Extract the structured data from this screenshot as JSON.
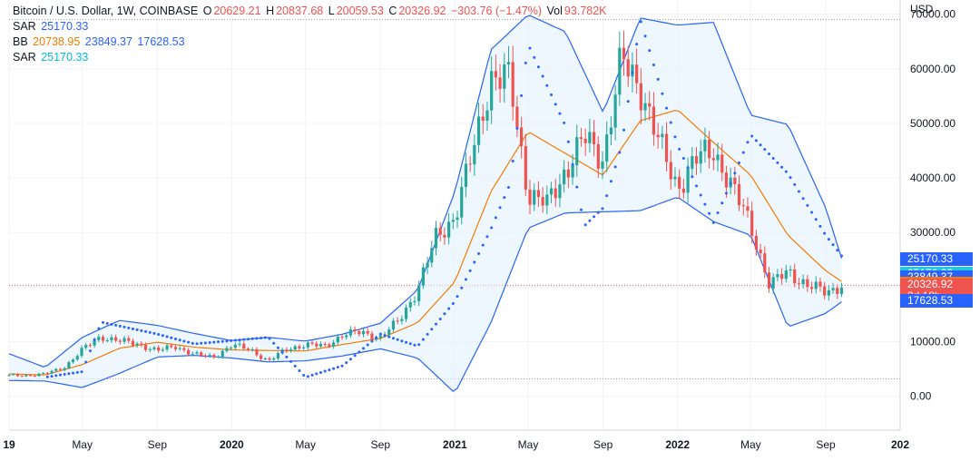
{
  "header": {
    "symbol": "Bitcoin / U.S. Dollar, 1W, COINBASE",
    "o_label": "O",
    "o_value": "20629.21",
    "h_label": "H",
    "h_value": "20837.68",
    "l_label": "L",
    "l_value": "20059.53",
    "c_label": "C",
    "c_value": "20326.92",
    "change": "−303.76 (−1.47%)",
    "vol_label": "Vol",
    "vol_value": "93.782K"
  },
  "indicators": [
    {
      "name": "SAR",
      "values": [
        "25170.33"
      ],
      "color": "#2962ff"
    },
    {
      "name": "BB",
      "values": [
        "20738.95",
        "23849.37",
        "17628.53"
      ],
      "color": "#2962ff"
    },
    {
      "name": "SAR",
      "values": [
        "25170.33"
      ],
      "color": "#00bcd4"
    }
  ],
  "price_axis": {
    "currency": "USD",
    "tags": [
      {
        "text": "25170.33",
        "color": "#2962ff"
      },
      {
        "text": "25170.33",
        "color": "#26c6da"
      },
      {
        "text": "23849.37",
        "color": "#2962ff"
      },
      {
        "text": "20738.95",
        "color": "#f57c00"
      },
      {
        "text": "20326.92",
        "sub": "3d 18h",
        "color": "#ef5350"
      },
      {
        "text": "17628.53",
        "color": "#2962ff"
      }
    ]
  },
  "colors": {
    "up": "#26a69a",
    "down": "#ef5350",
    "bb_band": "#2962ff",
    "bb_basis": "#f57c00",
    "bb_fill": "#e3f2fd"
  },
  "chart_data": {
    "type": "candlestick",
    "y_ticks": [
      70000,
      60000,
      50000,
      40000,
      30000,
      20000,
      10000,
      0
    ],
    "y_tick_labels": [
      "70000.00",
      "60000.00",
      "50000.00",
      "40000.00",
      "30000.00",
      "20000.00",
      "10000.00",
      "0.00"
    ],
    "ylim": [
      -6200,
      72600
    ],
    "x_tick_labels": [
      "19",
      "May",
      "Sep",
      "2020",
      "May",
      "Sep",
      "2021",
      "May",
      "Sep",
      "2022",
      "May",
      "Sep",
      "202"
    ],
    "x_tick_dates": [
      "2019-01-01",
      "2019-05-01",
      "2019-09-01",
      "2020-01-01",
      "2020-05-01",
      "2020-09-01",
      "2021-01-01",
      "2021-05-01",
      "2021-09-01",
      "2022-01-01",
      "2022-05-01",
      "2022-09-01",
      "2023-01-01"
    ],
    "xlim": [
      "2019-01-01",
      "2023-01-01"
    ],
    "reference_levels": [
      69000,
      3200
    ],
    "last_price": 20326.92,
    "series": [
      {
        "name": "BTCUSD",
        "kind": "close",
        "points": [
          [
            "2019-01-01",
            3800
          ],
          [
            "2019-02-01",
            3850
          ],
          [
            "2019-03-01",
            4100
          ],
          [
            "2019-04-01",
            5300
          ],
          [
            "2019-05-01",
            8500
          ],
          [
            "2019-06-01",
            11000
          ],
          [
            "2019-07-01",
            10100
          ],
          [
            "2019-08-01",
            9600
          ],
          [
            "2019-09-01",
            8300
          ],
          [
            "2019-10-01",
            9200
          ],
          [
            "2019-11-01",
            7600
          ],
          [
            "2019-12-01",
            7200
          ],
          [
            "2020-01-01",
            9300
          ],
          [
            "2020-02-01",
            8600
          ],
          [
            "2020-03-01",
            6400
          ],
          [
            "2020-04-01",
            8700
          ],
          [
            "2020-05-01",
            9450
          ],
          [
            "2020-06-01",
            9150
          ],
          [
            "2020-07-01",
            11300
          ],
          [
            "2020-08-01",
            11700
          ],
          [
            "2020-09-01",
            10800
          ],
          [
            "2020-10-01",
            13800
          ],
          [
            "2020-11-01",
            19700
          ],
          [
            "2020-12-01",
            29000
          ],
          [
            "2021-01-01",
            33100
          ],
          [
            "2021-02-01",
            45200
          ],
          [
            "2021-03-01",
            58800
          ],
          [
            "2021-04-01",
            57700
          ],
          [
            "2021-05-01",
            37300
          ],
          [
            "2021-06-01",
            35000
          ],
          [
            "2021-07-01",
            41500
          ],
          [
            "2021-08-01",
            47100
          ],
          [
            "2021-09-01",
            43800
          ],
          [
            "2021-10-01",
            61300
          ],
          [
            "2021-11-01",
            57000
          ],
          [
            "2021-12-01",
            46300
          ],
          [
            "2022-01-01",
            38500
          ],
          [
            "2022-02-01",
            43200
          ],
          [
            "2022-03-01",
            45500
          ],
          [
            "2022-04-01",
            37700
          ],
          [
            "2022-05-01",
            31800
          ],
          [
            "2022-06-01",
            19900
          ],
          [
            "2022-07-01",
            23300
          ],
          [
            "2022-08-01",
            20000
          ],
          [
            "2022-09-01",
            19400
          ],
          [
            "2022-10-01",
            20326.92
          ]
        ]
      },
      {
        "name": "BB basis",
        "points": [
          [
            "2019-01-01",
            4100
          ],
          [
            "2019-03-01",
            3900
          ],
          [
            "2019-05-01",
            5800
          ],
          [
            "2019-07-01",
            8800
          ],
          [
            "2019-09-01",
            9900
          ],
          [
            "2019-11-01",
            9000
          ],
          [
            "2020-01-01",
            8500
          ],
          [
            "2020-03-01",
            8400
          ],
          [
            "2020-05-01",
            8300
          ],
          [
            "2020-07-01",
            9500
          ],
          [
            "2020-09-01",
            10600
          ],
          [
            "2020-11-01",
            13500
          ],
          [
            "2021-01-01",
            21000
          ],
          [
            "2021-03-01",
            37500
          ],
          [
            "2021-05-01",
            48500
          ],
          [
            "2021-07-01",
            44500
          ],
          [
            "2021-09-01",
            40500
          ],
          [
            "2021-11-01",
            50500
          ],
          [
            "2022-01-01",
            52500
          ],
          [
            "2022-03-01",
            46500
          ],
          [
            "2022-05-01",
            40500
          ],
          [
            "2022-07-01",
            29500
          ],
          [
            "2022-09-01",
            23000
          ],
          [
            "2022-10-01",
            20738.95
          ]
        ]
      },
      {
        "name": "BB upper",
        "points": [
          [
            "2019-01-01",
            7800
          ],
          [
            "2019-03-01",
            5300
          ],
          [
            "2019-05-01",
            10800
          ],
          [
            "2019-07-01",
            13900
          ],
          [
            "2019-09-01",
            13000
          ],
          [
            "2019-11-01",
            11500
          ],
          [
            "2020-01-01",
            10200
          ],
          [
            "2020-03-01",
            10800
          ],
          [
            "2020-05-01",
            10100
          ],
          [
            "2020-07-01",
            11400
          ],
          [
            "2020-09-01",
            13400
          ],
          [
            "2020-11-01",
            19500
          ],
          [
            "2021-01-01",
            37500
          ],
          [
            "2021-03-01",
            63500
          ],
          [
            "2021-05-01",
            69900
          ],
          [
            "2021-07-01",
            66800
          ],
          [
            "2021-09-01",
            52000
          ],
          [
            "2021-11-01",
            69300
          ],
          [
            "2022-01-01",
            68000
          ],
          [
            "2022-03-01",
            68500
          ],
          [
            "2022-05-01",
            51500
          ],
          [
            "2022-07-01",
            49800
          ],
          [
            "2022-09-01",
            34500
          ],
          [
            "2022-10-01",
            23849.37
          ]
        ]
      },
      {
        "name": "BB lower",
        "points": [
          [
            "2019-01-01",
            2900
          ],
          [
            "2019-03-01",
            2800
          ],
          [
            "2019-05-01",
            1600
          ],
          [
            "2019-07-01",
            4200
          ],
          [
            "2019-09-01",
            7200
          ],
          [
            "2019-11-01",
            7500
          ],
          [
            "2020-01-01",
            7000
          ],
          [
            "2020-03-01",
            6300
          ],
          [
            "2020-05-01",
            6500
          ],
          [
            "2020-07-01",
            7400
          ],
          [
            "2020-09-01",
            8700
          ],
          [
            "2020-11-01",
            7000
          ],
          [
            "2021-01-01",
            600
          ],
          [
            "2021-03-01",
            13500
          ],
          [
            "2021-05-01",
            30800
          ],
          [
            "2021-07-01",
            33600
          ],
          [
            "2021-09-01",
            33800
          ],
          [
            "2021-11-01",
            34000
          ],
          [
            "2022-01-01",
            36500
          ],
          [
            "2022-03-01",
            32000
          ],
          [
            "2022-05-01",
            29500
          ],
          [
            "2022-07-01",
            12700
          ],
          [
            "2022-09-01",
            15200
          ],
          [
            "2022-10-01",
            17628.53
          ]
        ]
      },
      {
        "name": "SAR",
        "points": [
          [
            "2019-03-01",
            3500
          ],
          [
            "2019-05-01",
            4500
          ],
          [
            "2019-06-01",
            13600
          ],
          [
            "2019-09-01",
            11400
          ],
          [
            "2019-11-01",
            9600
          ],
          [
            "2020-01-01",
            10200
          ],
          [
            "2020-03-01",
            10800
          ],
          [
            "2020-05-01",
            3500
          ],
          [
            "2020-07-01",
            5600
          ],
          [
            "2020-09-01",
            11400
          ],
          [
            "2020-11-01",
            9200
          ],
          [
            "2021-01-01",
            17400
          ],
          [
            "2021-03-01",
            30600
          ],
          [
            "2021-04-01",
            38800
          ],
          [
            "2021-05-01",
            64500
          ],
          [
            "2021-07-01",
            49600
          ],
          [
            "2021-08-01",
            31200
          ],
          [
            "2021-09-01",
            34500
          ],
          [
            "2021-10-01",
            45800
          ],
          [
            "2021-11-01",
            69000
          ],
          [
            "2022-01-01",
            46000
          ],
          [
            "2022-03-01",
            31800
          ],
          [
            "2022-04-01",
            39800
          ],
          [
            "2022-05-01",
            47900
          ],
          [
            "2022-07-01",
            40800
          ],
          [
            "2022-09-01",
            29500
          ],
          [
            "2022-10-01",
            25170.33
          ]
        ]
      }
    ]
  }
}
